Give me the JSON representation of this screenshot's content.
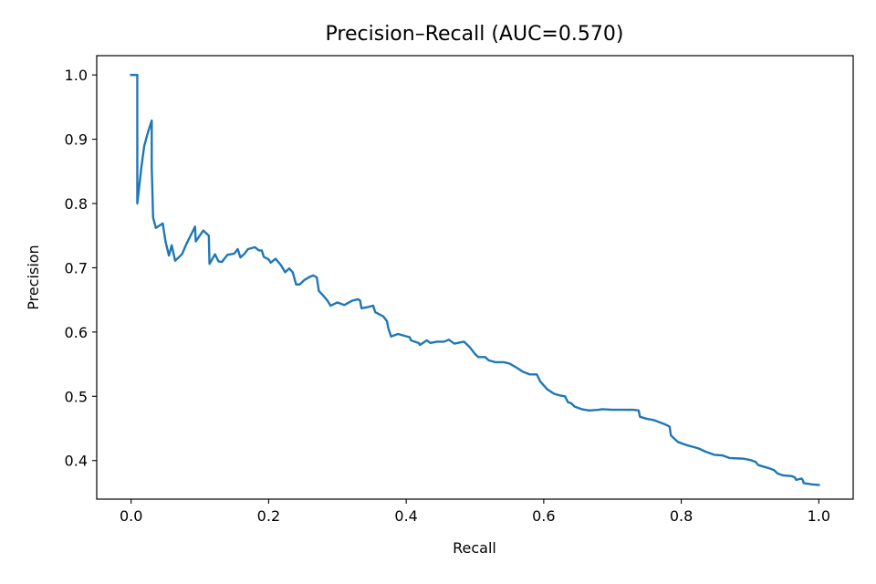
{
  "chart_data": {
    "type": "line",
    "title": "Precision–Recall (AUC=0.570)",
    "xlabel": "Recall",
    "ylabel": "Precision",
    "xlim": [
      -0.05,
      1.05
    ],
    "ylim": [
      0.34,
      1.03
    ],
    "xticks": [
      {
        "value": 0.0,
        "label": "0.0"
      },
      {
        "value": 0.2,
        "label": "0.2"
      },
      {
        "value": 0.4,
        "label": "0.4"
      },
      {
        "value": 0.6,
        "label": "0.6"
      },
      {
        "value": 0.8,
        "label": "0.8"
      },
      {
        "value": 1.0,
        "label": "1.0"
      }
    ],
    "yticks": [
      {
        "value": 0.4,
        "label": "0.4"
      },
      {
        "value": 0.5,
        "label": "0.5"
      },
      {
        "value": 0.6,
        "label": "0.6"
      },
      {
        "value": 0.7,
        "label": "0.7"
      },
      {
        "value": 0.8,
        "label": "0.8"
      },
      {
        "value": 0.9,
        "label": "0.9"
      },
      {
        "value": 1.0,
        "label": "1.0"
      }
    ],
    "grid": false,
    "series": [
      {
        "color": "#1f77b4",
        "points": [
          [
            0.0,
            1.0
          ],
          [
            0.009,
            1.0
          ],
          [
            0.009,
            0.8
          ],
          [
            0.015,
            0.857
          ],
          [
            0.019,
            0.889
          ],
          [
            0.024,
            0.909
          ],
          [
            0.03,
            0.929
          ],
          [
            0.03,
            0.857
          ],
          [
            0.032,
            0.778
          ],
          [
            0.036,
            0.762
          ],
          [
            0.046,
            0.769
          ],
          [
            0.05,
            0.741
          ],
          [
            0.055,
            0.719
          ],
          [
            0.059,
            0.735
          ],
          [
            0.064,
            0.711
          ],
          [
            0.074,
            0.721
          ],
          [
            0.08,
            0.736
          ],
          [
            0.093,
            0.764
          ],
          [
            0.094,
            0.741
          ],
          [
            0.105,
            0.758
          ],
          [
            0.113,
            0.75
          ],
          [
            0.114,
            0.706
          ],
          [
            0.122,
            0.721
          ],
          [
            0.127,
            0.71
          ],
          [
            0.132,
            0.709
          ],
          [
            0.14,
            0.72
          ],
          [
            0.15,
            0.722
          ],
          [
            0.155,
            0.729
          ],
          [
            0.159,
            0.716
          ],
          [
            0.165,
            0.722
          ],
          [
            0.17,
            0.729
          ],
          [
            0.18,
            0.732
          ],
          [
            0.186,
            0.727
          ],
          [
            0.19,
            0.727
          ],
          [
            0.193,
            0.717
          ],
          [
            0.2,
            0.713
          ],
          [
            0.203,
            0.708
          ],
          [
            0.21,
            0.714
          ],
          [
            0.218,
            0.704
          ],
          [
            0.224,
            0.693
          ],
          [
            0.23,
            0.699
          ],
          [
            0.235,
            0.693
          ],
          [
            0.24,
            0.674
          ],
          [
            0.245,
            0.674
          ],
          [
            0.252,
            0.681
          ],
          [
            0.26,
            0.686
          ],
          [
            0.265,
            0.688
          ],
          [
            0.27,
            0.685
          ],
          [
            0.273,
            0.664
          ],
          [
            0.28,
            0.656
          ],
          [
            0.286,
            0.648
          ],
          [
            0.29,
            0.641
          ],
          [
            0.3,
            0.646
          ],
          [
            0.31,
            0.642
          ],
          [
            0.315,
            0.645
          ],
          [
            0.322,
            0.649
          ],
          [
            0.33,
            0.651
          ],
          [
            0.333,
            0.649
          ],
          [
            0.335,
            0.637
          ],
          [
            0.345,
            0.639
          ],
          [
            0.352,
            0.641
          ],
          [
            0.355,
            0.631
          ],
          [
            0.367,
            0.624
          ],
          [
            0.372,
            0.617
          ],
          [
            0.374,
            0.606
          ],
          [
            0.378,
            0.593
          ],
          [
            0.388,
            0.597
          ],
          [
            0.398,
            0.594
          ],
          [
            0.405,
            0.592
          ],
          [
            0.407,
            0.587
          ],
          [
            0.418,
            0.583
          ],
          [
            0.42,
            0.58
          ],
          [
            0.43,
            0.587
          ],
          [
            0.435,
            0.583
          ],
          [
            0.445,
            0.585
          ],
          [
            0.455,
            0.585
          ],
          [
            0.462,
            0.588
          ],
          [
            0.47,
            0.582
          ],
          [
            0.484,
            0.585
          ],
          [
            0.492,
            0.577
          ],
          [
            0.5,
            0.566
          ],
          [
            0.505,
            0.561
          ],
          [
            0.515,
            0.561
          ],
          [
            0.52,
            0.556
          ],
          [
            0.53,
            0.553
          ],
          [
            0.542,
            0.553
          ],
          [
            0.55,
            0.551
          ],
          [
            0.56,
            0.545
          ],
          [
            0.57,
            0.538
          ],
          [
            0.58,
            0.534
          ],
          [
            0.59,
            0.534
          ],
          [
            0.595,
            0.523
          ],
          [
            0.605,
            0.511
          ],
          [
            0.615,
            0.504
          ],
          [
            0.625,
            0.501
          ],
          [
            0.631,
            0.5
          ],
          [
            0.635,
            0.491
          ],
          [
            0.64,
            0.489
          ],
          [
            0.645,
            0.484
          ],
          [
            0.655,
            0.48
          ],
          [
            0.666,
            0.478
          ],
          [
            0.68,
            0.479
          ],
          [
            0.685,
            0.48
          ],
          [
            0.7,
            0.479
          ],
          [
            0.715,
            0.479
          ],
          [
            0.73,
            0.479
          ],
          [
            0.738,
            0.478
          ],
          [
            0.74,
            0.468
          ],
          [
            0.75,
            0.465
          ],
          [
            0.76,
            0.463
          ],
          [
            0.775,
            0.457
          ],
          [
            0.783,
            0.453
          ],
          [
            0.785,
            0.439
          ],
          [
            0.795,
            0.429
          ],
          [
            0.808,
            0.424
          ],
          [
            0.825,
            0.419
          ],
          [
            0.835,
            0.414
          ],
          [
            0.848,
            0.409
          ],
          [
            0.86,
            0.408
          ],
          [
            0.87,
            0.404
          ],
          [
            0.89,
            0.403
          ],
          [
            0.9,
            0.401
          ],
          [
            0.908,
            0.398
          ],
          [
            0.912,
            0.393
          ],
          [
            0.928,
            0.388
          ],
          [
            0.935,
            0.385
          ],
          [
            0.94,
            0.38
          ],
          [
            0.945,
            0.378
          ],
          [
            0.948,
            0.377
          ],
          [
            0.96,
            0.376
          ],
          [
            0.965,
            0.374
          ],
          [
            0.967,
            0.37
          ],
          [
            0.975,
            0.372
          ],
          [
            0.977,
            0.369
          ],
          [
            0.978,
            0.365
          ],
          [
            0.99,
            0.363
          ],
          [
            1.0,
            0.362
          ]
        ]
      }
    ]
  }
}
